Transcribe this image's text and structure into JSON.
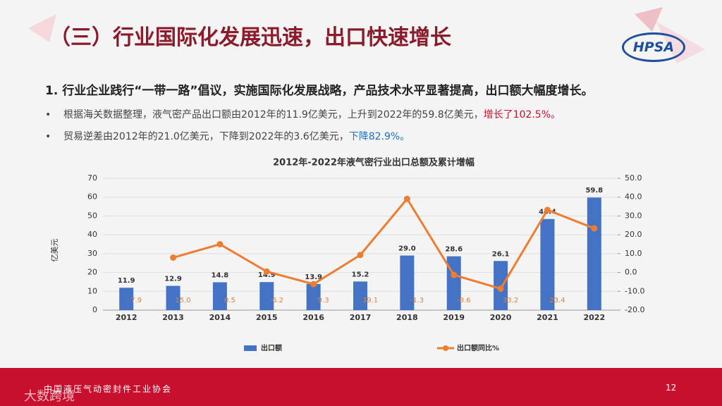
{
  "header": {
    "title": "（三）行业国际化发展迅速，出口快速增长",
    "logo": "HPSA"
  },
  "heading": "1. 行业企业践行“一带一路”倡议，实施国际化发展战略，产品技术水平显著提高，出口额大幅度增长。",
  "bullets": [
    {
      "text": "根据海关数据整理，液气密产品出口额由2012年的11.9亿美元，上升到2022年的59.8亿美元，",
      "highlight": "增长了102.5%。"
    },
    {
      "text": "贸易逆差由2012年的21.0亿美元，下降到2022年的3.6亿美元，",
      "highlight": "下降82.9%。"
    }
  ],
  "chart_data": {
    "type": "bar_line",
    "title": "2012年-2022年液气密行业出口总额及累计增幅",
    "y_label": "亿美元",
    "categories": [
      "2012",
      "2013",
      "2014",
      "2015",
      "2016",
      "2017",
      "2018",
      "2019",
      "2020",
      "2021",
      "2022"
    ],
    "series": [
      {
        "name": "出口额",
        "type": "bar",
        "color": "#4472c4",
        "values": [
          11.9,
          12.9,
          14.8,
          14.9,
          13.9,
          15.2,
          29.0,
          28.6,
          26.1,
          48.4,
          59.8
        ],
        "value_labels": [
          "11.9",
          "12.9",
          "14.8",
          "14.9",
          "13.9",
          "15.2",
          "29.0",
          "28.6",
          "26.1",
          "48.4",
          "59.8"
        ]
      },
      {
        "name": "出口额同比%",
        "type": "line",
        "axis": "y2",
        "color": "#ed7d31",
        "values": [
          null,
          7.9,
          15.0,
          0.5,
          -6.2,
          9.3,
          39.1,
          -1.3,
          -8.6,
          33.2,
          23.4
        ],
        "value_labels": [
          null,
          "7.9",
          "15.0",
          "0.5",
          "-6.2",
          "9.3",
          "39.1",
          "-1.3",
          "-8.6",
          "33.2",
          "23.4"
        ]
      }
    ],
    "ylim": [
      0,
      70
    ],
    "yticks": [
      0,
      10,
      20,
      30,
      40,
      50,
      60,
      70
    ],
    "y2lim": [
      -20,
      50
    ],
    "y2ticks": [
      {
        "value": -20,
        "label": "-20.0"
      },
      {
        "value": -10,
        "label": "-10.0"
      },
      {
        "value": 0,
        "label": "0.0"
      },
      {
        "value": 10,
        "label": "10.0"
      },
      {
        "value": 20,
        "label": "20.0"
      },
      {
        "value": 30,
        "label": "30.0"
      },
      {
        "value": 40,
        "label": "40.0"
      },
      {
        "value": 50,
        "label": "50.0"
      }
    ],
    "grid": true
  },
  "footer": {
    "org": "中国液压气动密封件工业协会",
    "page": "12",
    "watermark": "大数跨境"
  }
}
